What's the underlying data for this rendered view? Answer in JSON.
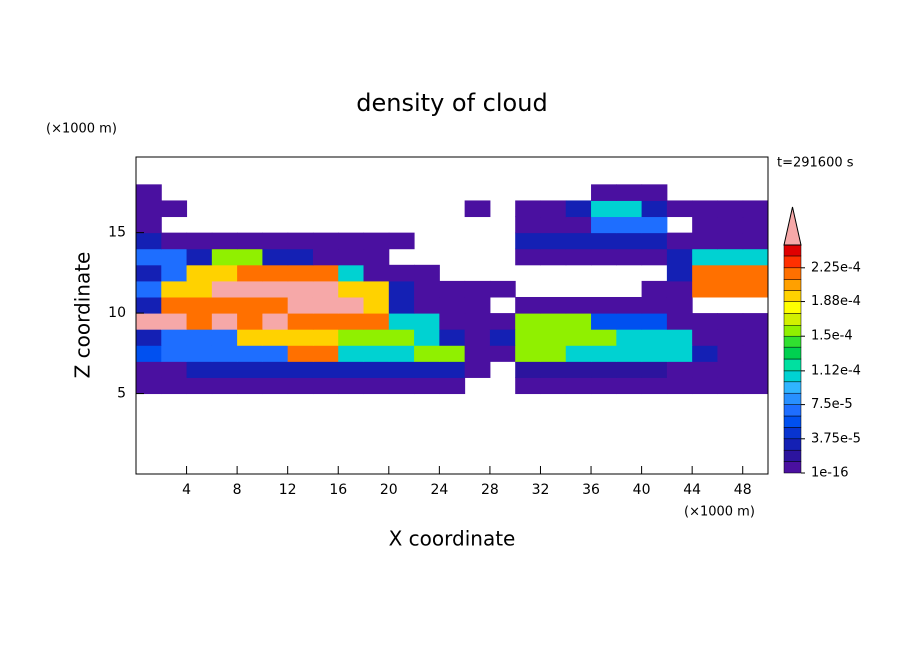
{
  "chart_data": {
    "type": "contour",
    "title": "density of cloud",
    "x_label": "X coordinate",
    "y_label": "Z coordinate",
    "x_unit": "(×1000 m)",
    "y_unit": "(×1000 m)",
    "time_label": "t=291600 s",
    "xlim": [
      0,
      50
    ],
    "ylim": [
      0,
      19.7
    ],
    "xticks": [
      4,
      8,
      12,
      16,
      20,
      24,
      28,
      32,
      36,
      40,
      44,
      48
    ],
    "yticks": [
      5,
      10,
      15
    ],
    "x": [
      1,
      3,
      5,
      7,
      9,
      11,
      13,
      15,
      17,
      19,
      21,
      23,
      25,
      27,
      29,
      31,
      33,
      35,
      37,
      39,
      41,
      43,
      45,
      47,
      49
    ],
    "z": [
      5.5,
      6.5,
      7.5,
      8.5,
      9.5,
      10.5,
      11.5,
      12.5,
      13.5,
      14.5,
      15.5,
      16.5,
      17.5
    ],
    "values": [
      [
        5e-06,
        5e-06,
        5e-06,
        5e-06,
        5e-06,
        5e-06,
        5e-06,
        5e-06,
        5e-06,
        5e-06,
        5e-06,
        5e-06,
        5e-06,
        null,
        null,
        5e-06,
        5e-06,
        5e-06,
        5e-06,
        5e-06,
        5e-06,
        5e-06,
        5e-06,
        5e-06,
        5e-06
      ],
      [
        5e-06,
        5e-06,
        3e-05,
        3e-05,
        3e-05,
        3e-05,
        3e-05,
        3e-05,
        3e-05,
        3e-05,
        3e-05,
        3e-05,
        3e-05,
        5e-06,
        null,
        2e-05,
        2e-05,
        2e-05,
        2e-05,
        2e-05,
        2e-05,
        5e-06,
        5e-06,
        5e-06,
        5e-06
      ],
      [
        5e-05,
        7e-05,
        7e-05,
        7e-05,
        7e-05,
        7e-05,
        0.00022,
        0.00022,
        0.0001,
        0.0001,
        0.0001,
        0.00016,
        0.00016,
        5e-06,
        5e-06,
        0.00016,
        0.00016,
        0.0001,
        0.0001,
        0.0001,
        0.0001,
        0.0001,
        3e-05,
        5e-06,
        5e-06
      ],
      [
        3e-05,
        7e-05,
        7e-05,
        7e-05,
        0.00019,
        0.00019,
        0.00019,
        0.00019,
        0.00016,
        0.00016,
        0.00016,
        0.0001,
        3e-05,
        5e-06,
        3e-05,
        0.00016,
        0.00016,
        0.00016,
        0.00016,
        0.0001,
        0.0001,
        0.0001,
        5e-06,
        5e-06,
        5e-06
      ],
      [
        0.00026,
        0.00026,
        0.00022,
        0.00026,
        0.00022,
        0.00026,
        0.00022,
        0.00022,
        0.00022,
        0.00022,
        0.0001,
        0.0001,
        5e-06,
        5e-06,
        5e-06,
        0.00016,
        0.00016,
        0.00016,
        5e-05,
        5e-05,
        5e-05,
        5e-06,
        5e-06,
        5e-06,
        5e-06
      ],
      [
        3e-05,
        0.00022,
        0.00022,
        0.00022,
        0.00022,
        0.00022,
        0.00026,
        0.00026,
        0.00026,
        0.00019,
        3e-05,
        5e-06,
        5e-06,
        5e-06,
        null,
        5e-06,
        5e-06,
        5e-06,
        5e-06,
        5e-06,
        5e-06,
        5e-06,
        null,
        null,
        null
      ],
      [
        7e-05,
        0.00019,
        0.00019,
        0.00026,
        0.00026,
        0.00026,
        0.00026,
        0.00026,
        0.00019,
        0.00019,
        3e-05,
        5e-06,
        5e-06,
        5e-06,
        5e-06,
        null,
        null,
        null,
        null,
        null,
        5e-06,
        5e-06,
        0.00022,
        0.00022,
        0.00022
      ],
      [
        3e-05,
        7e-05,
        0.00019,
        0.00019,
        0.00022,
        0.00022,
        0.00022,
        0.00022,
        0.0001,
        5e-06,
        5e-06,
        5e-06,
        null,
        null,
        null,
        null,
        null,
        null,
        null,
        null,
        null,
        3e-05,
        0.00022,
        0.00022,
        0.00022
      ],
      [
        7e-05,
        7e-05,
        3e-05,
        0.00016,
        0.00016,
        3e-05,
        3e-05,
        5e-06,
        5e-06,
        5e-06,
        null,
        null,
        null,
        null,
        null,
        5e-06,
        5e-06,
        5e-06,
        5e-06,
        5e-06,
        5e-06,
        3e-05,
        0.0001,
        0.0001,
        0.0001
      ],
      [
        3e-05,
        5e-06,
        5e-06,
        5e-06,
        5e-06,
        5e-06,
        5e-06,
        5e-06,
        5e-06,
        5e-06,
        5e-06,
        null,
        null,
        null,
        null,
        3e-05,
        3e-05,
        3e-05,
        3e-05,
        3e-05,
        3e-05,
        5e-06,
        5e-06,
        5e-06,
        5e-06
      ],
      [
        5e-06,
        null,
        null,
        null,
        null,
        null,
        null,
        null,
        null,
        null,
        null,
        null,
        null,
        null,
        null,
        5e-06,
        5e-06,
        5e-06,
        7e-05,
        7e-05,
        7e-05,
        null,
        5e-06,
        5e-06,
        5e-06
      ],
      [
        5e-06,
        5e-06,
        null,
        null,
        null,
        null,
        null,
        null,
        null,
        null,
        null,
        null,
        null,
        5e-06,
        null,
        5e-06,
        5e-06,
        3e-05,
        0.0001,
        0.0001,
        3e-05,
        5e-06,
        5e-06,
        5e-06,
        5e-06
      ],
      [
        5e-06,
        null,
        null,
        null,
        null,
        null,
        null,
        null,
        null,
        null,
        null,
        null,
        null,
        null,
        null,
        null,
        null,
        null,
        5e-06,
        5e-06,
        5e-06,
        null,
        null,
        null,
        null
      ]
    ],
    "levels": [
      1e-16,
      1.25e-05,
      2.5e-05,
      3.75e-05,
      5e-05,
      6.25e-05,
      7.5e-05,
      8.75e-05,
      0.0001,
      0.000112,
      0.000125,
      0.000138,
      0.00015,
      0.000162,
      0.000175,
      0.000188,
      0.0002,
      0.000212,
      0.000225,
      0.000238,
      0.00025
    ],
    "colors": [
      "#4a10a0",
      "#2c149e",
      "#1420b4",
      "#0834d0",
      "#0050f0",
      "#1e6eff",
      "#2890ff",
      "#30b4ff",
      "#00d2d2",
      "#00e0a0",
      "#00d050",
      "#30e030",
      "#90f000",
      "#d2f000",
      "#ffff00",
      "#ffd200",
      "#ffa000",
      "#ff7000",
      "#ff3000",
      "#e00000"
    ],
    "extend_color": "#f6a8a8",
    "colorbar_ticks": [
      {
        "value": 1e-16,
        "label": "1e-16"
      },
      {
        "value": 3.75e-05,
        "label": "3.75e-5"
      },
      {
        "value": 7.5e-05,
        "label": "7.5e-5"
      },
      {
        "value": 0.000112,
        "label": "1.12e-4"
      },
      {
        "value": 0.00015,
        "label": "1.5e-4"
      },
      {
        "value": 0.000188,
        "label": "1.88e-4"
      },
      {
        "value": 0.000225,
        "label": "2.25e-4"
      }
    ]
  }
}
